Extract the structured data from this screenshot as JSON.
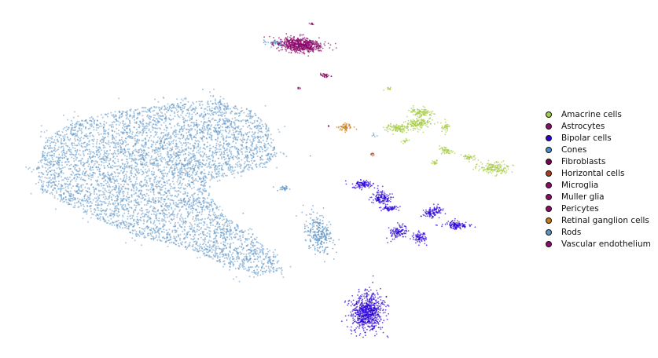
{
  "chart_data": {
    "type": "scatter",
    "title": "",
    "xlabel": "",
    "ylabel": "",
    "grid": false,
    "axes_visible": false,
    "legend_placement": "right",
    "series": [
      {
        "name": "Amacrine cells",
        "color": "#a6cc47",
        "density": "low"
      },
      {
        "name": "Astrocytes",
        "color": "#8b0a6b",
        "density": "trace"
      },
      {
        "name": "Bipolar cells",
        "color": "#2a00d6",
        "density": "medium"
      },
      {
        "name": "Cones",
        "color": "#4a8ec4",
        "density": "low"
      },
      {
        "name": "Fibroblasts",
        "color": "#800050",
        "density": "trace"
      },
      {
        "name": "Horizontal cells",
        "color": "#b23a1e",
        "density": "trace"
      },
      {
        "name": "Microglia",
        "color": "#8b0a6b",
        "density": "trace"
      },
      {
        "name": "Muller glia",
        "color": "#8b0a6b",
        "density": "medium"
      },
      {
        "name": "Pericytes",
        "color": "#8b0a6b",
        "density": "trace"
      },
      {
        "name": "Retinal ganglion cells",
        "color": "#c77a14",
        "density": "trace"
      },
      {
        "name": "Rods",
        "color": "#5b93c4",
        "density": "high"
      },
      {
        "name": "Vascular endothelium",
        "color": "#8b0a6b",
        "density": "trace"
      }
    ]
  }
}
